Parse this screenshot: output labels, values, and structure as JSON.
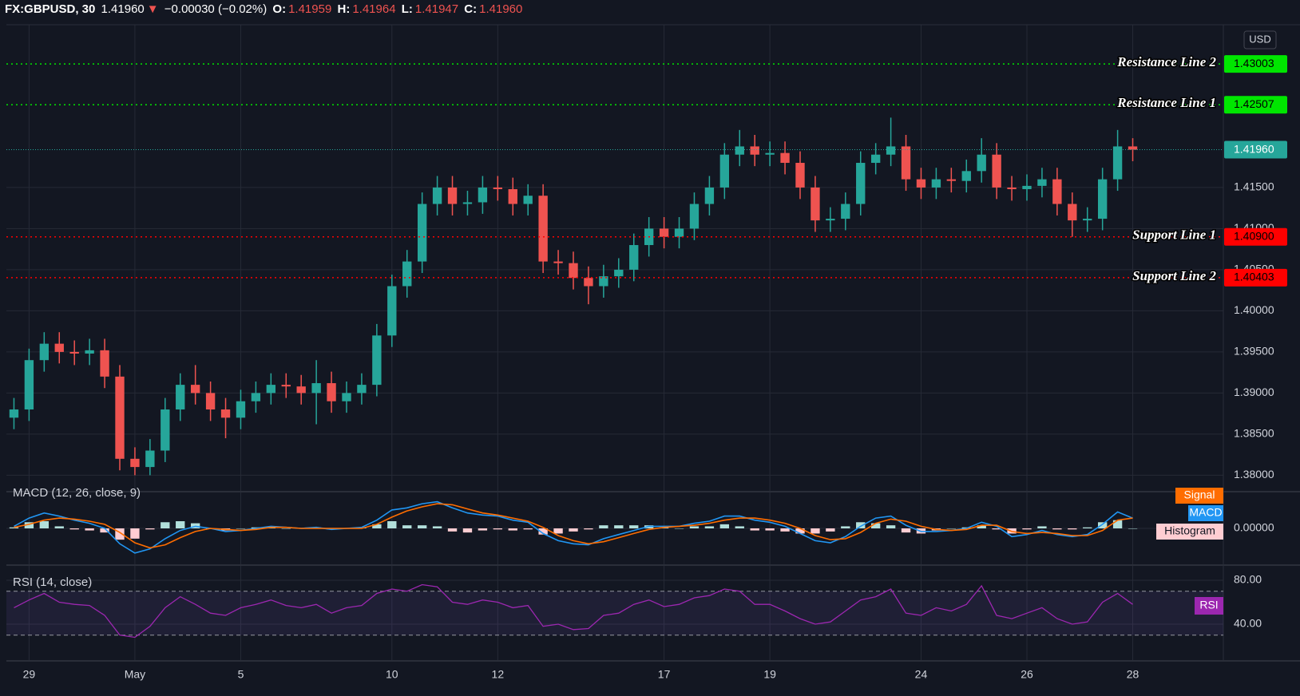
{
  "header": {
    "symbol": "FX:GBPUSD, 30",
    "last": "1.41960",
    "arrow": "▼",
    "change": "−0.00030 (−0.02%)",
    "open_label": "O:",
    "open": "1.41959",
    "high_label": "H:",
    "high": "1.41964",
    "low_label": "L:",
    "low": "1.41947",
    "close_label": "C:",
    "close": "1.41960"
  },
  "chart_data": [
    {
      "type": "candlestick",
      "currency": "USD",
      "up_color": "#26a69a",
      "down_color": "#ef5350",
      "grid": true,
      "categories": [
        null,
        "29",
        null,
        null,
        null,
        null,
        null,
        null,
        "May",
        null,
        null,
        null,
        null,
        null,
        null,
        "5",
        null,
        null,
        null,
        null,
        null,
        null,
        null,
        null,
        null,
        "10",
        null,
        null,
        null,
        null,
        null,
        null,
        "12",
        null,
        null,
        null,
        null,
        null,
        null,
        null,
        null,
        null,
        null,
        "17",
        null,
        null,
        null,
        null,
        null,
        null,
        "19",
        null,
        null,
        null,
        null,
        null,
        null,
        null,
        null,
        null,
        "24",
        null,
        null,
        null,
        null,
        null,
        null,
        "26",
        null,
        null,
        null,
        null,
        null,
        null,
        "28"
      ],
      "open": [
        1.387,
        1.388,
        1.394,
        1.396,
        1.395,
        1.3948,
        1.3952,
        1.392,
        1.382,
        1.381,
        1.383,
        1.388,
        1.391,
        1.39,
        1.388,
        1.387,
        1.389,
        1.39,
        1.391,
        1.3908,
        1.39,
        1.3912,
        1.389,
        1.39,
        1.391,
        1.397,
        1.403,
        1.406,
        1.413,
        1.415,
        1.413,
        1.4132,
        1.415,
        1.4148,
        1.413,
        1.414,
        1.406,
        1.4058,
        1.404,
        1.403,
        1.4042,
        1.405,
        1.408,
        1.41,
        1.409,
        1.41,
        1.413,
        1.415,
        1.419,
        1.42,
        1.419,
        1.4192,
        1.418,
        1.415,
        1.411,
        1.4112,
        1.413,
        1.418,
        1.419,
        1.42,
        1.416,
        1.415,
        1.416,
        1.4158,
        1.417,
        1.419,
        1.415,
        1.4148,
        1.4152,
        1.416,
        1.413,
        1.411,
        1.4112,
        1.416,
        1.42
      ],
      "high": [
        1.3894,
        1.3954,
        1.3974,
        1.3974,
        1.3964,
        1.3966,
        1.3966,
        1.3934,
        1.3834,
        1.3844,
        1.3894,
        1.3924,
        1.3934,
        1.3914,
        1.3894,
        1.3904,
        1.3914,
        1.3924,
        1.3924,
        1.3922,
        1.394,
        1.3926,
        1.3914,
        1.3924,
        1.3984,
        1.4044,
        1.4074,
        1.4144,
        1.4164,
        1.4164,
        1.4146,
        1.4164,
        1.4164,
        1.4162,
        1.4154,
        1.4154,
        1.4074,
        1.4072,
        1.4054,
        1.4056,
        1.4064,
        1.4094,
        1.4114,
        1.4114,
        1.4114,
        1.4144,
        1.4164,
        1.4204,
        1.422,
        1.4214,
        1.4206,
        1.4206,
        1.4194,
        1.4164,
        1.4126,
        1.4144,
        1.4194,
        1.4204,
        1.4235,
        1.4214,
        1.4174,
        1.4174,
        1.4174,
        1.4184,
        1.421,
        1.4204,
        1.4164,
        1.4166,
        1.4174,
        1.4174,
        1.4144,
        1.4126,
        1.4174,
        1.422,
        1.421
      ],
      "low": [
        1.3856,
        1.3866,
        1.3926,
        1.3936,
        1.3934,
        1.3934,
        1.3906,
        1.3806,
        1.38,
        1.38,
        1.3816,
        1.3866,
        1.3886,
        1.3866,
        1.3845,
        1.3856,
        1.3876,
        1.3886,
        1.3894,
        1.3886,
        1.3862,
        1.3876,
        1.3876,
        1.3886,
        1.3896,
        1.3956,
        1.4016,
        1.4046,
        1.4116,
        1.4116,
        1.4116,
        1.4118,
        1.4134,
        1.4116,
        1.4116,
        1.4046,
        1.4044,
        1.4026,
        1.4008,
        1.4016,
        1.4028,
        1.4036,
        1.4066,
        1.4076,
        1.4076,
        1.4086,
        1.4116,
        1.4136,
        1.4176,
        1.4176,
        1.4176,
        1.4166,
        1.4136,
        1.4096,
        1.4096,
        1.4098,
        1.4116,
        1.4166,
        1.4176,
        1.4146,
        1.4136,
        1.4136,
        1.4144,
        1.4144,
        1.4156,
        1.4136,
        1.4134,
        1.4134,
        1.4138,
        1.4116,
        1.409,
        1.4096,
        1.4098,
        1.4146,
        1.4182
      ],
      "close": [
        1.388,
        1.394,
        1.396,
        1.395,
        1.3948,
        1.3952,
        1.392,
        1.382,
        1.381,
        1.383,
        1.388,
        1.391,
        1.39,
        1.388,
        1.387,
        1.389,
        1.39,
        1.391,
        1.3908,
        1.39,
        1.3912,
        1.389,
        1.39,
        1.391,
        1.397,
        1.403,
        1.406,
        1.413,
        1.415,
        1.413,
        1.4132,
        1.415,
        1.4148,
        1.413,
        1.414,
        1.406,
        1.4058,
        1.404,
        1.403,
        1.4042,
        1.405,
        1.408,
        1.41,
        1.409,
        1.41,
        1.413,
        1.415,
        1.419,
        1.42,
        1.419,
        1.4192,
        1.418,
        1.415,
        1.411,
        1.4112,
        1.413,
        1.418,
        1.419,
        1.42,
        1.416,
        1.415,
        1.416,
        1.4158,
        1.417,
        1.419,
        1.415,
        1.4148,
        1.4152,
        1.416,
        1.413,
        1.411,
        1.4112,
        1.416,
        1.42,
        1.4196
      ],
      "ylim": [
        1.378,
        1.4348
      ],
      "yticks": [
        {
          "value": 1.38,
          "label": "1.38000"
        },
        {
          "value": 1.385,
          "label": "1.38500"
        },
        {
          "value": 1.39,
          "label": "1.39000"
        },
        {
          "value": 1.395,
          "label": "1.39500"
        },
        {
          "value": 1.4,
          "label": "1.40000"
        },
        {
          "value": 1.405,
          "label": "1.40500"
        },
        {
          "value": 1.41,
          "label": "1.41000"
        },
        {
          "value": 1.415,
          "label": "1.41500"
        }
      ],
      "hlines": [
        {
          "name": "Resistance Line 2",
          "value": 1.43003,
          "label": "1.43003",
          "color": "#00e600"
        },
        {
          "name": "Resistance Line 1",
          "value": 1.42507,
          "label": "1.42507",
          "color": "#00e600"
        },
        {
          "name": "Support Line 1",
          "value": 1.409,
          "label": "1.40900",
          "color": "#ff0000"
        },
        {
          "name": "Support Line 2",
          "value": 1.40403,
          "label": "1.40403",
          "color": "#ff0000"
        }
      ],
      "last": {
        "value": 1.4196,
        "label": "1.41960",
        "color": "#26a69a"
      }
    },
    {
      "type": "macd",
      "title": "MACD (12, 26, close, 9)",
      "ylim": [
        -0.0035,
        0.0035
      ],
      "yticks": [
        {
          "value": 0,
          "label": "0.00000"
        }
      ],
      "series": [
        {
          "name": "MACD",
          "color": "#2196f3",
          "values": [
            0.0002,
            0.001,
            0.0015,
            0.0012,
            0.0008,
            0.0005,
            0.0,
            -0.0015,
            -0.0024,
            -0.002,
            -0.001,
            -0.0002,
            0.0002,
            0.0,
            -0.0003,
            -0.0002,
            0.0,
            0.0002,
            0.0001,
            0.0,
            0.0001,
            -0.0001,
            0.0,
            0.0001,
            0.0008,
            0.0018,
            0.002,
            0.0024,
            0.0026,
            0.002,
            0.0015,
            0.0013,
            0.0012,
            0.0008,
            0.0006,
            -0.0005,
            -0.0012,
            -0.0015,
            -0.0016,
            -0.001,
            -0.0006,
            -0.0002,
            0.0002,
            0.0002,
            0.0002,
            0.0005,
            0.0007,
            0.0012,
            0.0012,
            0.0008,
            0.0006,
            0.0002,
            -0.0005,
            -0.0012,
            -0.0014,
            -0.0008,
            0.0002,
            0.001,
            0.0012,
            0.0003,
            -0.0003,
            -0.0003,
            -0.0002,
            0.0,
            0.0006,
            0.0002,
            -0.0008,
            -0.0006,
            -0.0002,
            -0.0006,
            -0.0008,
            -0.0006,
            0.0004,
            0.0016,
            0.001
          ]
        },
        {
          "name": "Signal",
          "color": "#ff6d00",
          "values": [
            0.0001,
            0.0004,
            0.0008,
            0.001,
            0.0009,
            0.0007,
            0.0004,
            -0.0004,
            -0.0014,
            -0.0019,
            -0.0016,
            -0.0009,
            -0.0003,
            0.0,
            -0.0001,
            -0.0002,
            -0.0001,
            0.0001,
            0.0001,
            0.0,
            0.0,
            0.0,
            0.0,
            0.0,
            0.0004,
            0.0011,
            0.0017,
            0.0021,
            0.0024,
            0.0023,
            0.0019,
            0.0015,
            0.0013,
            0.001,
            0.0007,
            0.0001,
            -0.0007,
            -0.0012,
            -0.0015,
            -0.0013,
            -0.0009,
            -0.0005,
            -0.0001,
            0.0001,
            0.0002,
            0.0003,
            0.0005,
            0.0008,
            0.001,
            0.001,
            0.0008,
            0.0005,
            0.0,
            -0.0007,
            -0.0011,
            -0.001,
            -0.0004,
            0.0005,
            0.0009,
            0.0007,
            0.0002,
            -0.0001,
            -0.0002,
            -0.0001,
            0.0003,
            0.0003,
            -0.0003,
            -0.0005,
            -0.0004,
            -0.0005,
            -0.0007,
            -0.0007,
            -0.0002,
            0.0008,
            0.001
          ]
        }
      ],
      "histogram": {
        "name": "Histogram",
        "up_color": "#b2dfdb",
        "down_color": "#ffcdd2",
        "values": [
          0.0001,
          0.0006,
          0.0007,
          0.0002,
          -0.0001,
          -0.0002,
          -0.0004,
          -0.0011,
          -0.001,
          -0.0001,
          0.0006,
          0.0007,
          0.0005,
          0.0,
          -0.0002,
          0.0,
          0.0001,
          0.0001,
          0.0,
          0.0,
          0.0001,
          -0.0001,
          0.0,
          0.0001,
          0.0004,
          0.0007,
          0.0003,
          0.0003,
          0.0002,
          -0.0003,
          -0.0004,
          -0.0002,
          -0.0001,
          -0.0002,
          -0.0001,
          -0.0006,
          -0.0005,
          -0.0003,
          -0.0001,
          0.0003,
          0.0003,
          0.0003,
          0.0003,
          0.0001,
          0.0,
          0.0002,
          0.0002,
          0.0004,
          0.0002,
          -0.0002,
          -0.0002,
          -0.0003,
          -0.0005,
          -0.0005,
          -0.0003,
          0.0002,
          0.0006,
          0.0005,
          0.0003,
          -0.0004,
          -0.0005,
          -0.0002,
          0.0,
          0.0001,
          0.0003,
          -0.0001,
          -0.0005,
          -0.0001,
          0.0002,
          -0.0001,
          -0.0001,
          0.0001,
          0.0006,
          0.0008,
          0.0
        ]
      }
    },
    {
      "type": "rsi",
      "title": "RSI (14, close)",
      "ylim": [
        6.5,
        93.1
      ],
      "yticks": [
        {
          "value": 80,
          "label": "80.00"
        },
        {
          "value": 40,
          "label": "40.00"
        }
      ],
      "bands": [
        70,
        30
      ],
      "series": [
        {
          "name": "RSI",
          "color": "#9c27b0",
          "values": [
            55,
            62,
            68,
            60,
            58,
            57,
            48,
            30,
            28,
            38,
            55,
            65,
            58,
            50,
            48,
            55,
            58,
            62,
            57,
            55,
            58,
            50,
            55,
            57,
            68,
            72,
            70,
            76,
            74,
            60,
            58,
            62,
            60,
            55,
            57,
            38,
            40,
            35,
            36,
            48,
            50,
            58,
            62,
            56,
            58,
            64,
            66,
            72,
            70,
            58,
            58,
            52,
            45,
            40,
            42,
            52,
            62,
            65,
            72,
            50,
            48,
            55,
            52,
            58,
            75,
            48,
            45,
            50,
            55,
            45,
            40,
            42,
            60,
            68,
            58
          ]
        }
      ]
    }
  ]
}
